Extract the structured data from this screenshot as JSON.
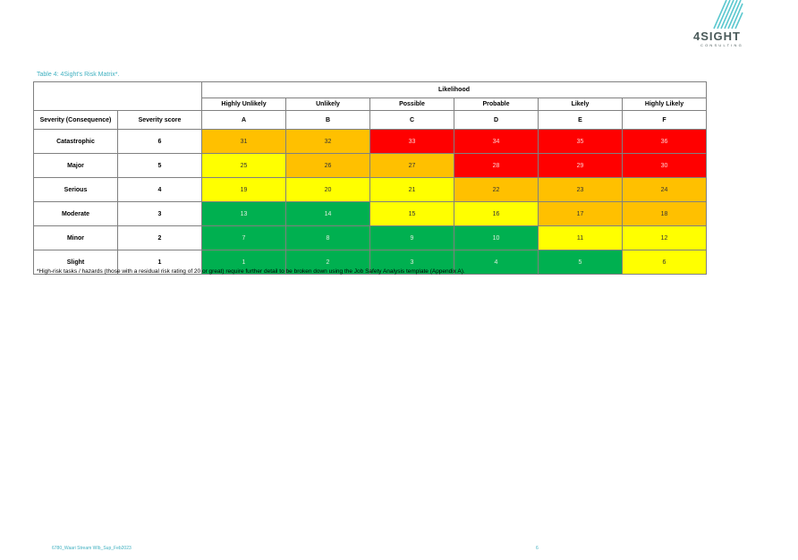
{
  "logo": {
    "name": "4SIGHT",
    "sub": "CONSULTING"
  },
  "caption": "Table 4: 4Sight's Risk Matrix*.",
  "table": {
    "likelihood_label": "Likelihood",
    "likelihood": [
      "Highly Unlikely",
      "Unlikely",
      "Possible",
      "Probable",
      "Likely",
      "Highly Likely"
    ],
    "letters": [
      "A",
      "B",
      "C",
      "D",
      "E",
      "F"
    ],
    "severity_header": "Severity (Consequence)",
    "score_header": "Severity score",
    "rows": [
      {
        "severity": "Catastrophic",
        "score": "6",
        "cells": [
          "31",
          "32",
          "33",
          "34",
          "35",
          "36"
        ],
        "colors": [
          "orange",
          "orange",
          "red",
          "red",
          "red",
          "red"
        ]
      },
      {
        "severity": "Major",
        "score": "5",
        "cells": [
          "25",
          "26",
          "27",
          "28",
          "29",
          "30"
        ],
        "colors": [
          "yellow",
          "orange",
          "orange",
          "red",
          "red",
          "red"
        ]
      },
      {
        "severity": "Serious",
        "score": "4",
        "cells": [
          "19",
          "20",
          "21",
          "22",
          "23",
          "24"
        ],
        "colors": [
          "yellow",
          "yellow",
          "yellow",
          "orange",
          "orange",
          "orange"
        ]
      },
      {
        "severity": "Moderate",
        "score": "3",
        "cells": [
          "13",
          "14",
          "15",
          "16",
          "17",
          "18"
        ],
        "colors": [
          "green",
          "green",
          "yellow",
          "yellow",
          "orange",
          "orange"
        ]
      },
      {
        "severity": "Minor",
        "score": "2",
        "cells": [
          "7",
          "8",
          "9",
          "10",
          "11",
          "12"
        ],
        "colors": [
          "green",
          "green",
          "green",
          "green",
          "yellow",
          "yellow"
        ]
      },
      {
        "severity": "Slight",
        "score": "1",
        "cells": [
          "1",
          "2",
          "3",
          "4",
          "5",
          "6"
        ],
        "colors": [
          "green",
          "green",
          "green",
          "green",
          "green",
          "yellow"
        ]
      }
    ]
  },
  "footnote": "*High-risk tasks / hazards (those with a residual risk rating of 20 or great) require further detail to be broken down using the Job Safety Analysis template (Appendix A).",
  "footer": {
    "doc_ref": "6780_Waari Stream WIb_Sup_Feb2023",
    "page": "6"
  }
}
